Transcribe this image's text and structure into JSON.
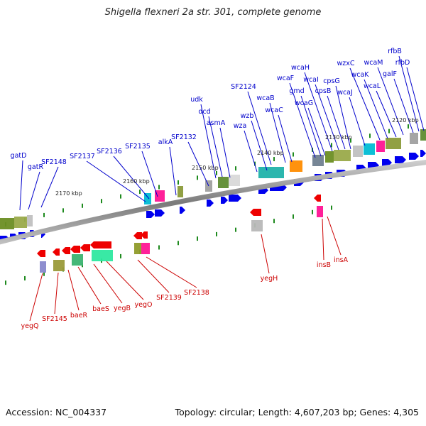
{
  "title": "Shigella flexneri 2a str. 301, complete genome",
  "footer": {
    "accession": "Accession: NC_004337",
    "topology": "Topology: circular; Length: 4,607,203 bp; Genes: 4,305"
  },
  "colors": {
    "backbone": "#8a8a8a",
    "forward_arrow": "#0000ee",
    "reverse_arrow": "#ee0000",
    "forward_label": "#0000cc",
    "reverse_label": "#cc0000",
    "tick": "#1e8a1e"
  },
  "scale_labels": [
    "2170 kbp",
    "2160 kbp",
    "2150 kbp",
    "2140 kbp",
    "2130 kbp",
    "2120 kbp"
  ],
  "forward_genes": [
    "gatD",
    "gatR",
    "SF2148",
    "SF2137",
    "SF2136",
    "SF2135",
    "alkA",
    "SF2132",
    "udk",
    "dcd",
    "asmA",
    "wza",
    "wzb",
    "SF2124",
    "wcaB",
    "wcaC",
    "wcaF",
    "gmd",
    "wcaG",
    "wcaH",
    "wcaI",
    "cpsB",
    "cpsG",
    "wcaJ",
    "wzxC",
    "wcaK",
    "wcaL",
    "wcaM",
    "galF",
    "rfbB",
    "rfbD"
  ],
  "reverse_genes": [
    "yegQ",
    "SF2145",
    "baeR",
    "baeS",
    "yegB",
    "yegO",
    "SF2139",
    "SF2138",
    "yegH",
    "insB",
    "insA"
  ]
}
